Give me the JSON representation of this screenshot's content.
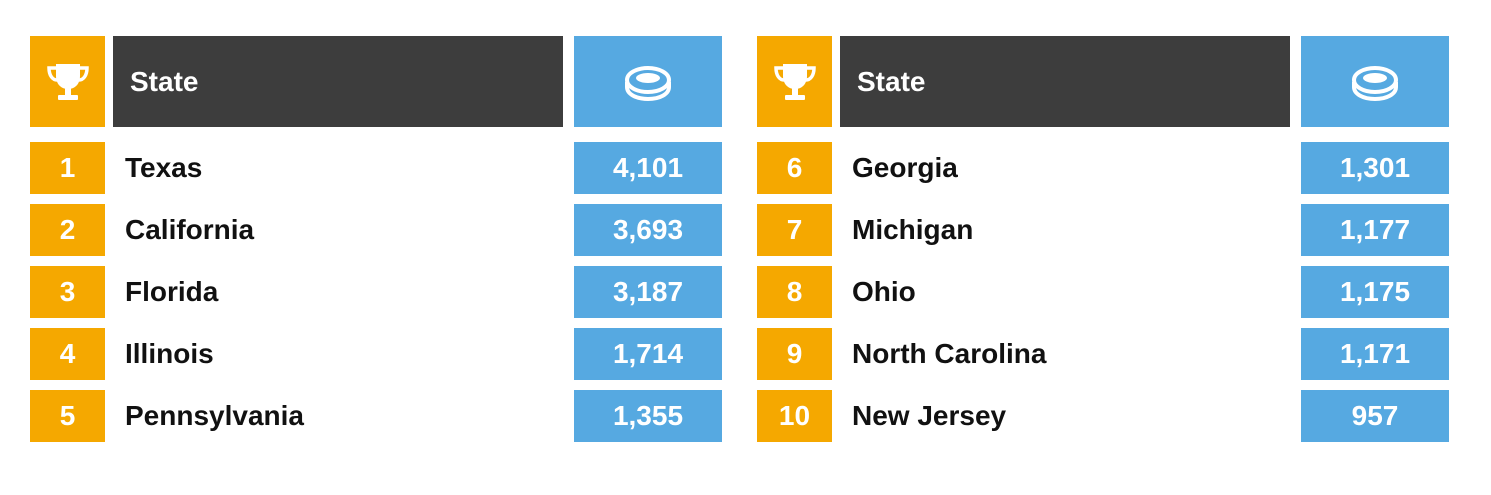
{
  "tables": [
    {
      "header": {
        "label": "State"
      },
      "rows": [
        [
          "1",
          "Texas",
          "4,101"
        ],
        [
          "2",
          "California",
          "3,693"
        ],
        [
          "3",
          "Florida",
          "3,187"
        ],
        [
          "4",
          "Illinois",
          "1,714"
        ],
        [
          "5",
          "Pennsylvania",
          "1,355"
        ]
      ]
    },
    {
      "header": {
        "label": "State"
      },
      "rows": [
        [
          "6",
          "Georgia",
          "1,301"
        ],
        [
          "7",
          "Michigan",
          "1,177"
        ],
        [
          "8",
          "Ohio",
          "1,175"
        ],
        [
          "9",
          "North Carolina",
          "1,171"
        ],
        [
          "10",
          "New Jersey",
          "957"
        ]
      ]
    }
  ]
}
